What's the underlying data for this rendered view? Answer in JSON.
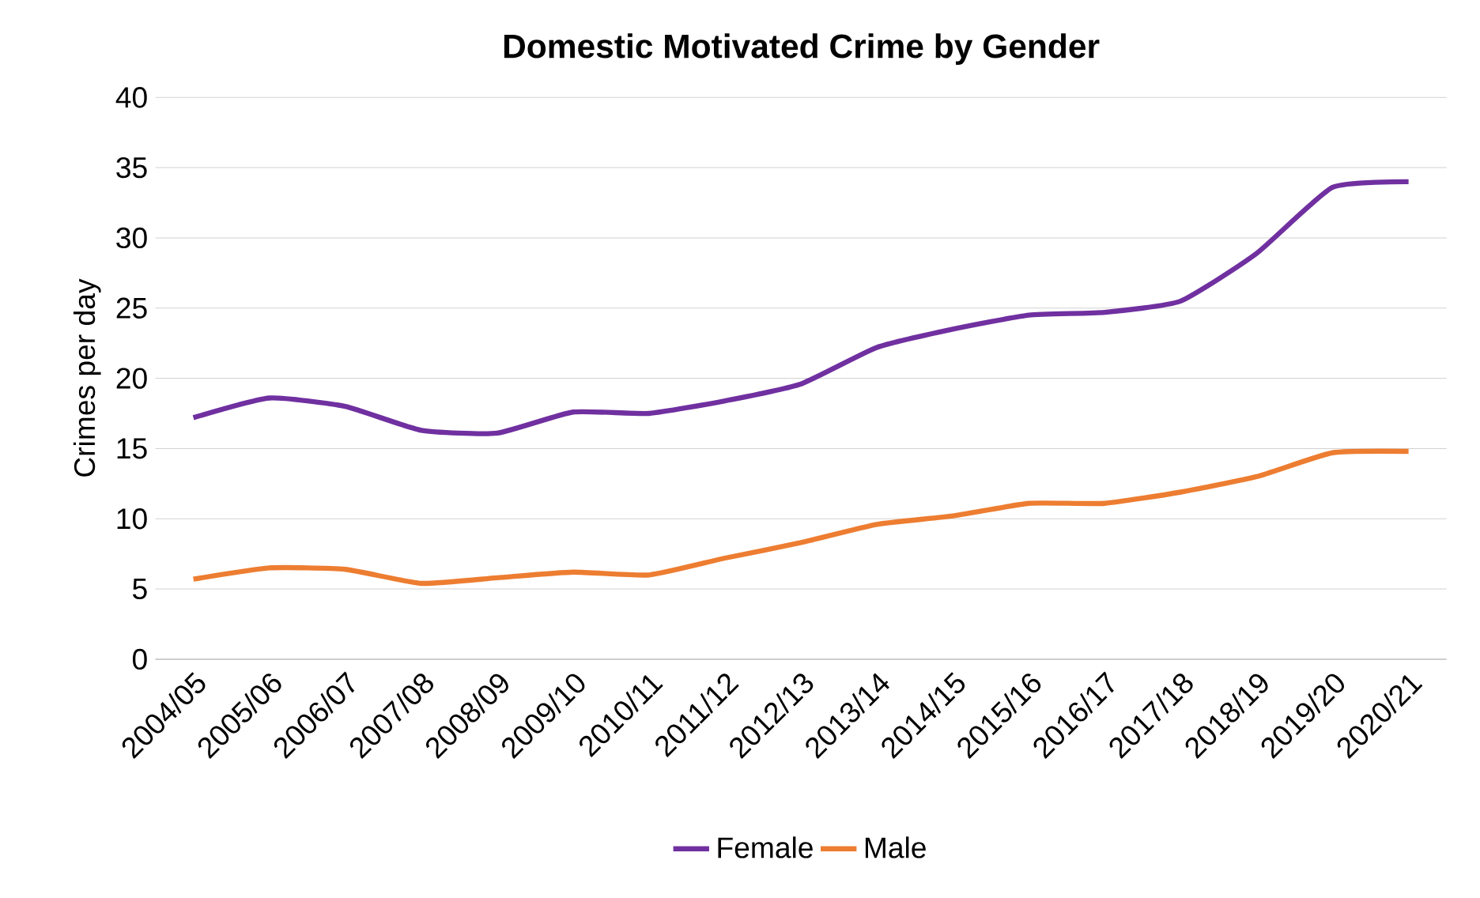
{
  "chart_data": {
    "type": "line",
    "title": "Domestic Motivated Crime by Gender",
    "ylabel": "Crimes per day",
    "categories": [
      "2004/05",
      "2005/06",
      "2006/07",
      "2007/08",
      "2008/09",
      "2009/10",
      "2010/11",
      "2011/12",
      "2012/13",
      "2013/14",
      "2014/15",
      "2015/16",
      "2016/17",
      "2017/18",
      "2018/19",
      "2019/20",
      "2020/21"
    ],
    "series": [
      {
        "name": "Female",
        "color": "#7030a0",
        "values": [
          17.2,
          18.6,
          18.0,
          16.3,
          16.1,
          17.6,
          17.5,
          18.4,
          19.6,
          22.2,
          23.5,
          24.5,
          24.7,
          25.5,
          28.9,
          33.6,
          34.0
        ]
      },
      {
        "name": "Male",
        "color": "#ed7d31",
        "values": [
          5.7,
          6.5,
          6.4,
          5.4,
          5.8,
          6.2,
          6.0,
          7.2,
          8.3,
          9.6,
          10.2,
          11.1,
          11.1,
          11.9,
          13.0,
          14.7,
          14.8
        ]
      }
    ],
    "ylim": [
      0,
      40
    ],
    "yticks": [
      0,
      5,
      10,
      15,
      20,
      25,
      30,
      35,
      40
    ],
    "grid": "y",
    "legend": "bottom",
    "marker": "none",
    "line_style": "solid"
  }
}
